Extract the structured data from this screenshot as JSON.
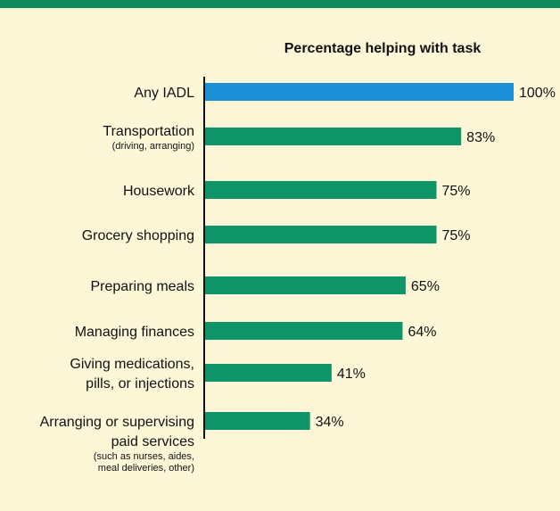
{
  "chart_data": {
    "type": "bar",
    "orientation": "horizontal",
    "title": "Percentage helping with task",
    "xlim": [
      0,
      100
    ],
    "colors": {
      "highlight": "#1a8fd6",
      "default": "#0f9467"
    },
    "categories": [
      {
        "label": [
          "Any IADL"
        ],
        "sub": [],
        "value": 100,
        "display": "100%",
        "highlight": true
      },
      {
        "label": [
          "Transportation"
        ],
        "sub": [
          "(driving, arranging)"
        ],
        "value": 83,
        "display": "83%"
      },
      {
        "label": [
          "Housework"
        ],
        "sub": [],
        "value": 75,
        "display": "75%"
      },
      {
        "label": [
          "Grocery shopping"
        ],
        "sub": [],
        "value": 75,
        "display": "75%"
      },
      {
        "label": [
          "Preparing meals"
        ],
        "sub": [],
        "value": 65,
        "display": "65%"
      },
      {
        "label": [
          "Managing finances"
        ],
        "sub": [],
        "value": 64,
        "display": "64%"
      },
      {
        "label": [
          "Giving medications,",
          "pills, or injections"
        ],
        "sub": [],
        "value": 41,
        "display": "41%"
      },
      {
        "label": [
          "Arranging or supervising",
          "paid services"
        ],
        "sub": [
          "(such as nurses, aides,",
          "meal deliveries, other)"
        ],
        "value": 34,
        "display": "34%"
      }
    ]
  }
}
